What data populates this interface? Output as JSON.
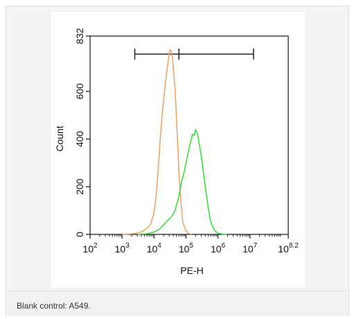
{
  "caption": "Blank control: A549.",
  "chart_data": {
    "type": "line",
    "xlabel": "PE-H",
    "ylabel": "Count",
    "x_scale": "log",
    "xlim": [
      100,
      158489319
    ],
    "ylim": [
      0,
      832
    ],
    "x_ticks": [
      {
        "value": 100,
        "base": "10",
        "exp": "2"
      },
      {
        "value": 1000,
        "base": "10",
        "exp": "3"
      },
      {
        "value": 10000,
        "base": "10",
        "exp": "4"
      },
      {
        "value": 100000,
        "base": "10",
        "exp": "5"
      },
      {
        "value": 1000000,
        "base": "10",
        "exp": "6"
      },
      {
        "value": 10000000,
        "base": "10",
        "exp": "7"
      },
      {
        "value": 158489319,
        "base": "10",
        "exp": "8.2"
      }
    ],
    "y_ticks": [
      {
        "value": 0,
        "label": "0"
      },
      {
        "value": 200,
        "label": "200"
      },
      {
        "value": 400,
        "label": "400"
      },
      {
        "value": 600,
        "label": "600"
      },
      {
        "value": 832,
        "label": "832"
      }
    ],
    "gate": {
      "x_start": 2500,
      "x_mid": 60000,
      "x_end": 13000000
    },
    "series": [
      {
        "color": "#f0a060",
        "x": [
          1000,
          2000,
          4000,
          6000,
          8000,
          10000,
          12000,
          14000,
          16000,
          18000,
          20000,
          22000,
          25000,
          28000,
          30000,
          32000,
          35000,
          38000,
          40000,
          45000,
          50000,
          55000,
          60000,
          70000,
          80000,
          100000,
          120000,
          150000
        ],
        "y": [
          0,
          2,
          10,
          25,
          45,
          90,
          180,
          300,
          420,
          500,
          560,
          620,
          680,
          730,
          760,
          775,
          765,
          740,
          700,
          620,
          500,
          380,
          260,
          130,
          50,
          15,
          5,
          0
        ]
      },
      {
        "color": "#33dd33",
        "x": [
          3000,
          6000,
          10000,
          15000,
          20000,
          25000,
          30000,
          35000,
          40000,
          45000,
          50000,
          60000,
          70000,
          80000,
          90000,
          100000,
          120000,
          140000,
          160000,
          180000,
          200000,
          230000,
          260000,
          300000,
          350000,
          400000,
          500000,
          600000,
          800000,
          1000000,
          1500000,
          2000000
        ],
        "y": [
          0,
          3,
          10,
          22,
          40,
          55,
          65,
          75,
          85,
          100,
          120,
          160,
          210,
          240,
          270,
          300,
          350,
          390,
          420,
          415,
          440,
          420,
          380,
          330,
          260,
          200,
          110,
          50,
          15,
          5,
          1,
          0
        ]
      }
    ]
  }
}
